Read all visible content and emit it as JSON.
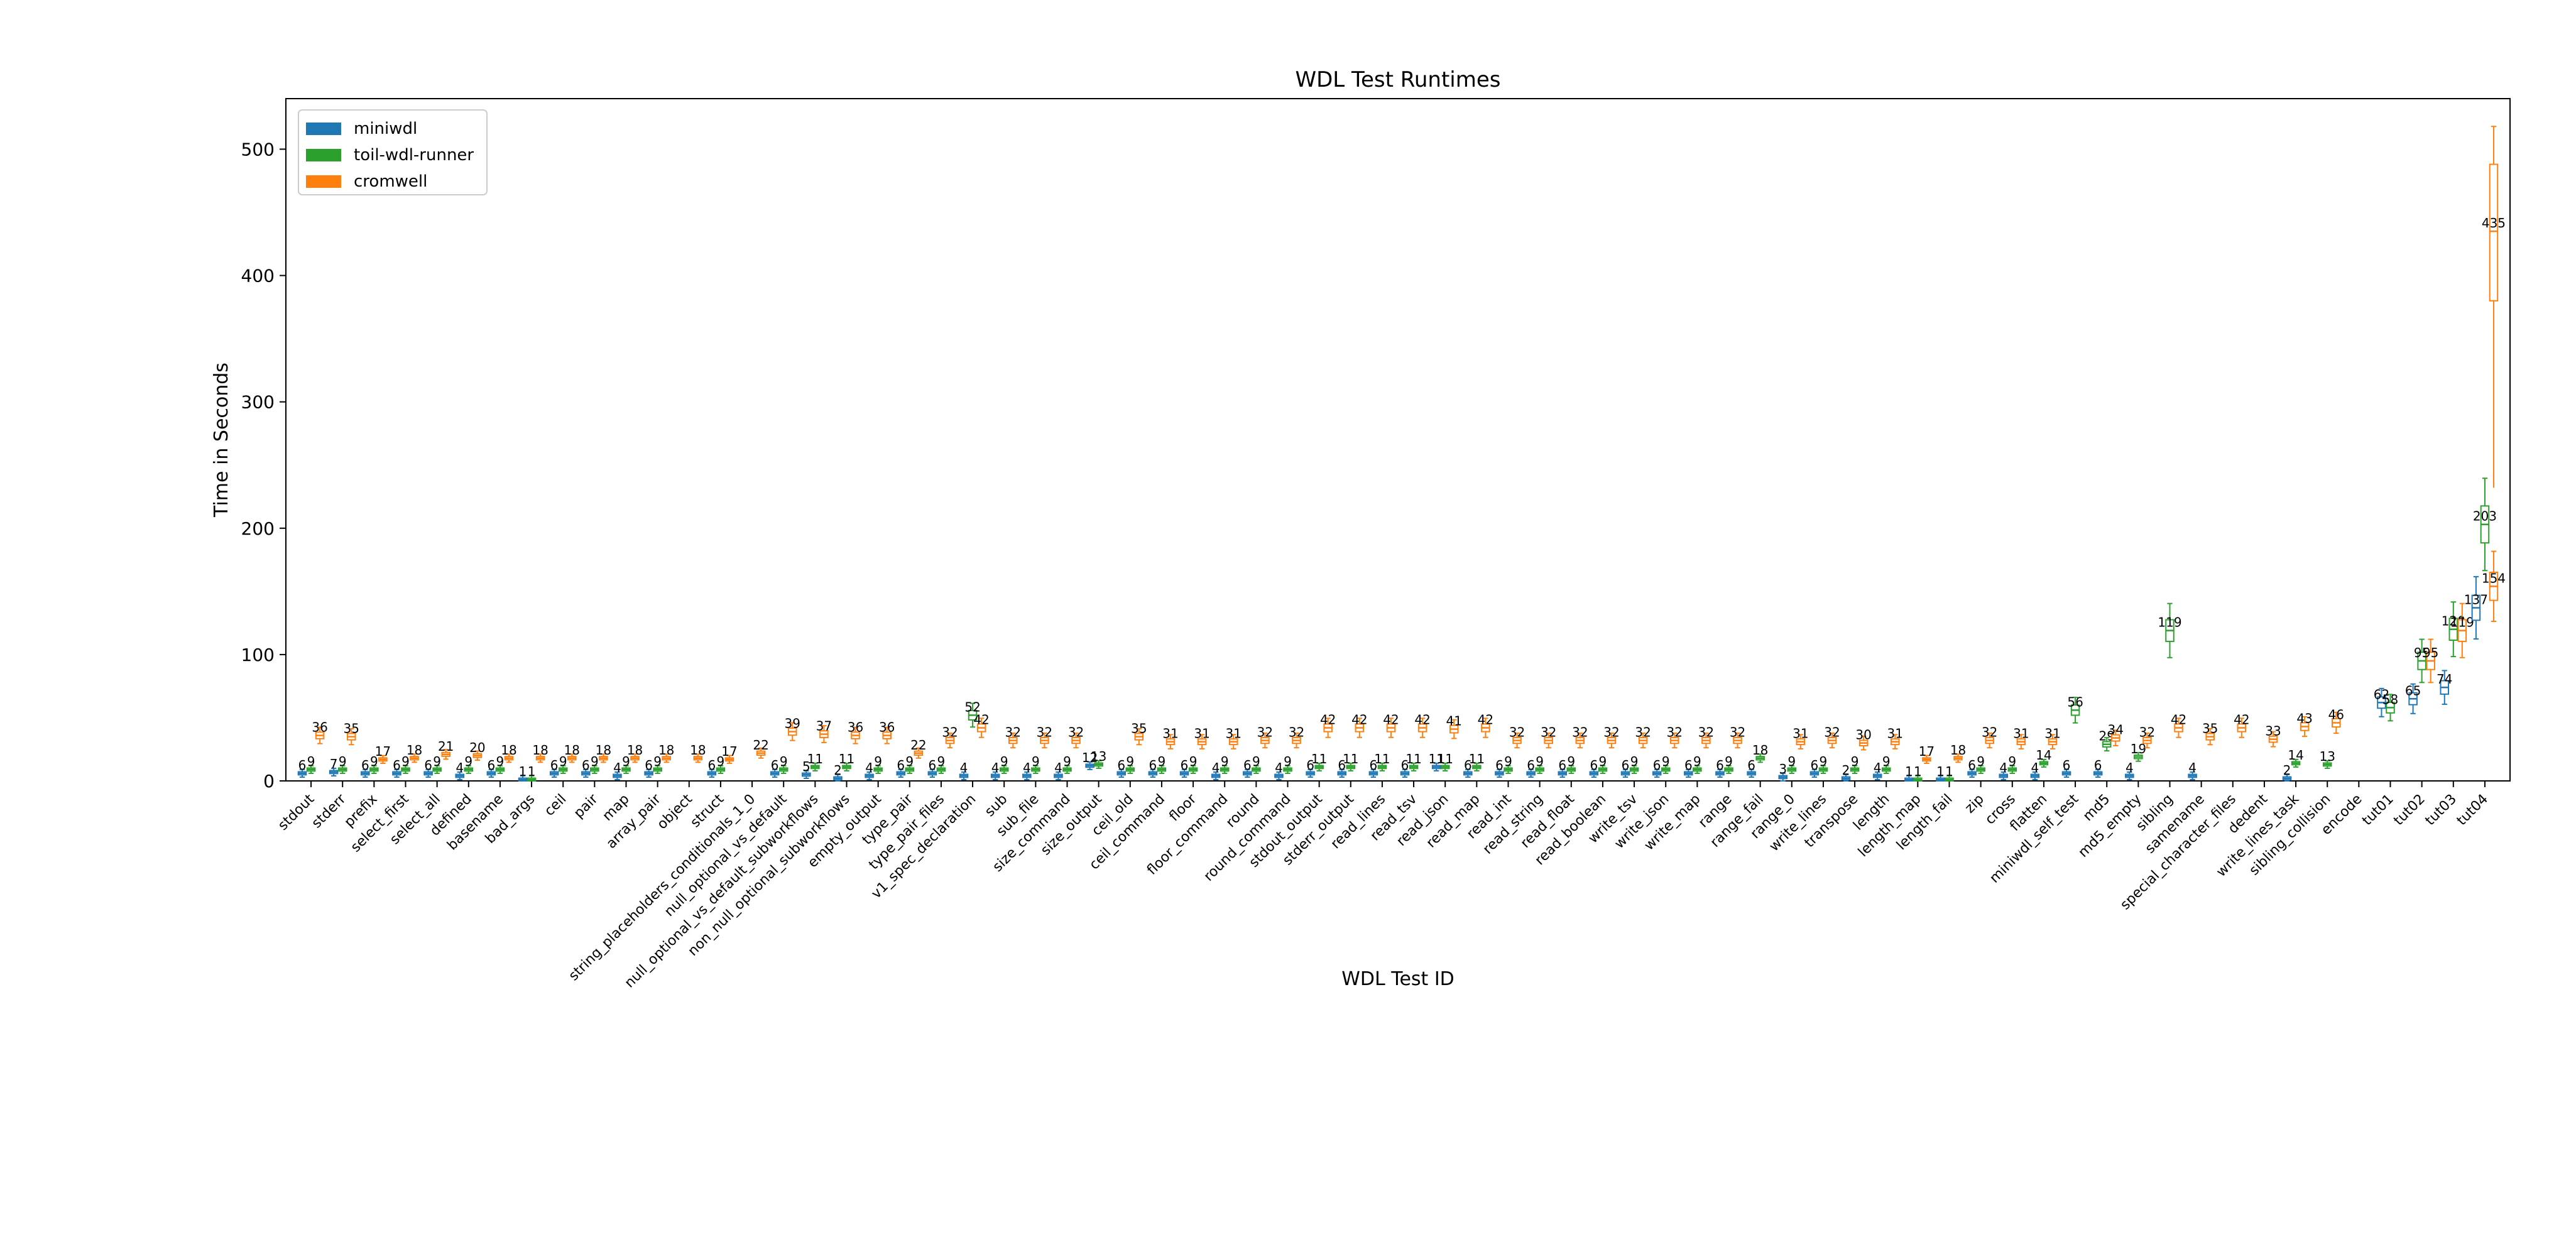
{
  "chart_data": {
    "type": "box",
    "title": "WDL Test Runtimes",
    "xlabel": "WDL Test ID",
    "ylabel": "Time in Seconds",
    "ylim": [
      0,
      540
    ],
    "yticks": [
      0,
      100,
      200,
      300,
      400,
      500
    ],
    "grid": false,
    "legend_position": "top-left",
    "series": [
      {
        "name": "miniwdl",
        "color": "#1f77b4"
      },
      {
        "name": "toil-wdl-runner",
        "color": "#2ca02c"
      },
      {
        "name": "cromwell",
        "color": "#ff7f0e"
      }
    ],
    "categories": [
      "stdout",
      "stderr",
      "prefix",
      "select_first",
      "select_all",
      "defined",
      "basename",
      "bad_args",
      "ceil",
      "pair",
      "map",
      "array_pair",
      "object",
      "struct",
      "string_placeholders_conditionals_1_0",
      "null_optional_vs_default",
      "null_optional_vs_default_subworkflows",
      "non_null_optional_subworkflows",
      "empty_output",
      "type_pair",
      "type_pair_files",
      "v1_spec_declaration",
      "sub",
      "sub_file",
      "size_command",
      "size_output",
      "ceil_old",
      "ceil_command",
      "floor",
      "floor_command",
      "round",
      "round_command",
      "stdout_output",
      "stderr_output",
      "read_lines",
      "read_tsv",
      "read_json",
      "read_map",
      "read_int",
      "read_string",
      "read_float",
      "read_boolean",
      "write_tsv",
      "write_json",
      "write_map",
      "range",
      "range_fail",
      "range_0",
      "write_lines",
      "transpose",
      "length",
      "length_map",
      "length_fail",
      "zip",
      "cross",
      "flatten",
      "miniwdl_self_test",
      "md5",
      "md5_empty",
      "sibling",
      "samename",
      "special_character_files",
      "dedent",
      "write_lines_task",
      "sibling_collision",
      "encode",
      "tut01",
      "tut02",
      "tut03",
      "tut04"
    ],
    "medians": [
      [
        6,
        9,
        36
      ],
      [
        7,
        9,
        35
      ],
      [
        6,
        9,
        17
      ],
      [
        6,
        9,
        18
      ],
      [
        6,
        9,
        21
      ],
      [
        4,
        9,
        20
      ],
      [
        6,
        9,
        18
      ],
      [
        1,
        1,
        18
      ],
      [
        6,
        9,
        18
      ],
      [
        6,
        9,
        18
      ],
      [
        4,
        9,
        18
      ],
      [
        6,
        9,
        18
      ],
      [
        null,
        null,
        18
      ],
      [
        6,
        9,
        17
      ],
      [
        null,
        null,
        22
      ],
      [
        6,
        9,
        39
      ],
      [
        5,
        11,
        37
      ],
      [
        2,
        11,
        36
      ],
      [
        4,
        9,
        36
      ],
      [
        6,
        9,
        22
      ],
      [
        6,
        9,
        32
      ],
      [
        4,
        52,
        42
      ],
      [
        4,
        9,
        32
      ],
      [
        4,
        9,
        32
      ],
      [
        4,
        9,
        32
      ],
      [
        12,
        13,
        null
      ],
      [
        6,
        9,
        35
      ],
      [
        6,
        9,
        31
      ],
      [
        6,
        9,
        31
      ],
      [
        4,
        9,
        31
      ],
      [
        6,
        9,
        32
      ],
      [
        4,
        9,
        32
      ],
      [
        6,
        11,
        42
      ],
      [
        6,
        11,
        42
      ],
      [
        6,
        11,
        42
      ],
      [
        6,
        11,
        42
      ],
      [
        11,
        11,
        41
      ],
      [
        6,
        11,
        42
      ],
      [
        6,
        9,
        32
      ],
      [
        6,
        9,
        32
      ],
      [
        6,
        9,
        32
      ],
      [
        6,
        9,
        32
      ],
      [
        6,
        9,
        32
      ],
      [
        6,
        9,
        32
      ],
      [
        6,
        9,
        32
      ],
      [
        6,
        9,
        32
      ],
      [
        6,
        18,
        null
      ],
      [
        3,
        9,
        31
      ],
      [
        6,
        9,
        32
      ],
      [
        2,
        9,
        30
      ],
      [
        4,
        9,
        31
      ],
      [
        1,
        1,
        17
      ],
      [
        1,
        1,
        18
      ],
      [
        6,
        9,
        32
      ],
      [
        4,
        9,
        31
      ],
      [
        4,
        14,
        31
      ],
      [
        6,
        56,
        null
      ],
      [
        6,
        29,
        34
      ],
      [
        4,
        19,
        32
      ],
      [
        null,
        119,
        42
      ],
      [
        4,
        null,
        35
      ],
      [
        null,
        null,
        42
      ],
      [
        null,
        null,
        33
      ],
      [
        2,
        14,
        43
      ],
      [
        null,
        13,
        46
      ],
      [
        null,
        null,
        null
      ],
      [
        62,
        58,
        null
      ],
      [
        65,
        95,
        95
      ],
      [
        74,
        120,
        119
      ],
      [
        137,
        203,
        154
      ]
    ],
    "box_labels_extra": [
      {
        "category": "tut04",
        "series": "cromwell",
        "value": 435
      }
    ]
  }
}
